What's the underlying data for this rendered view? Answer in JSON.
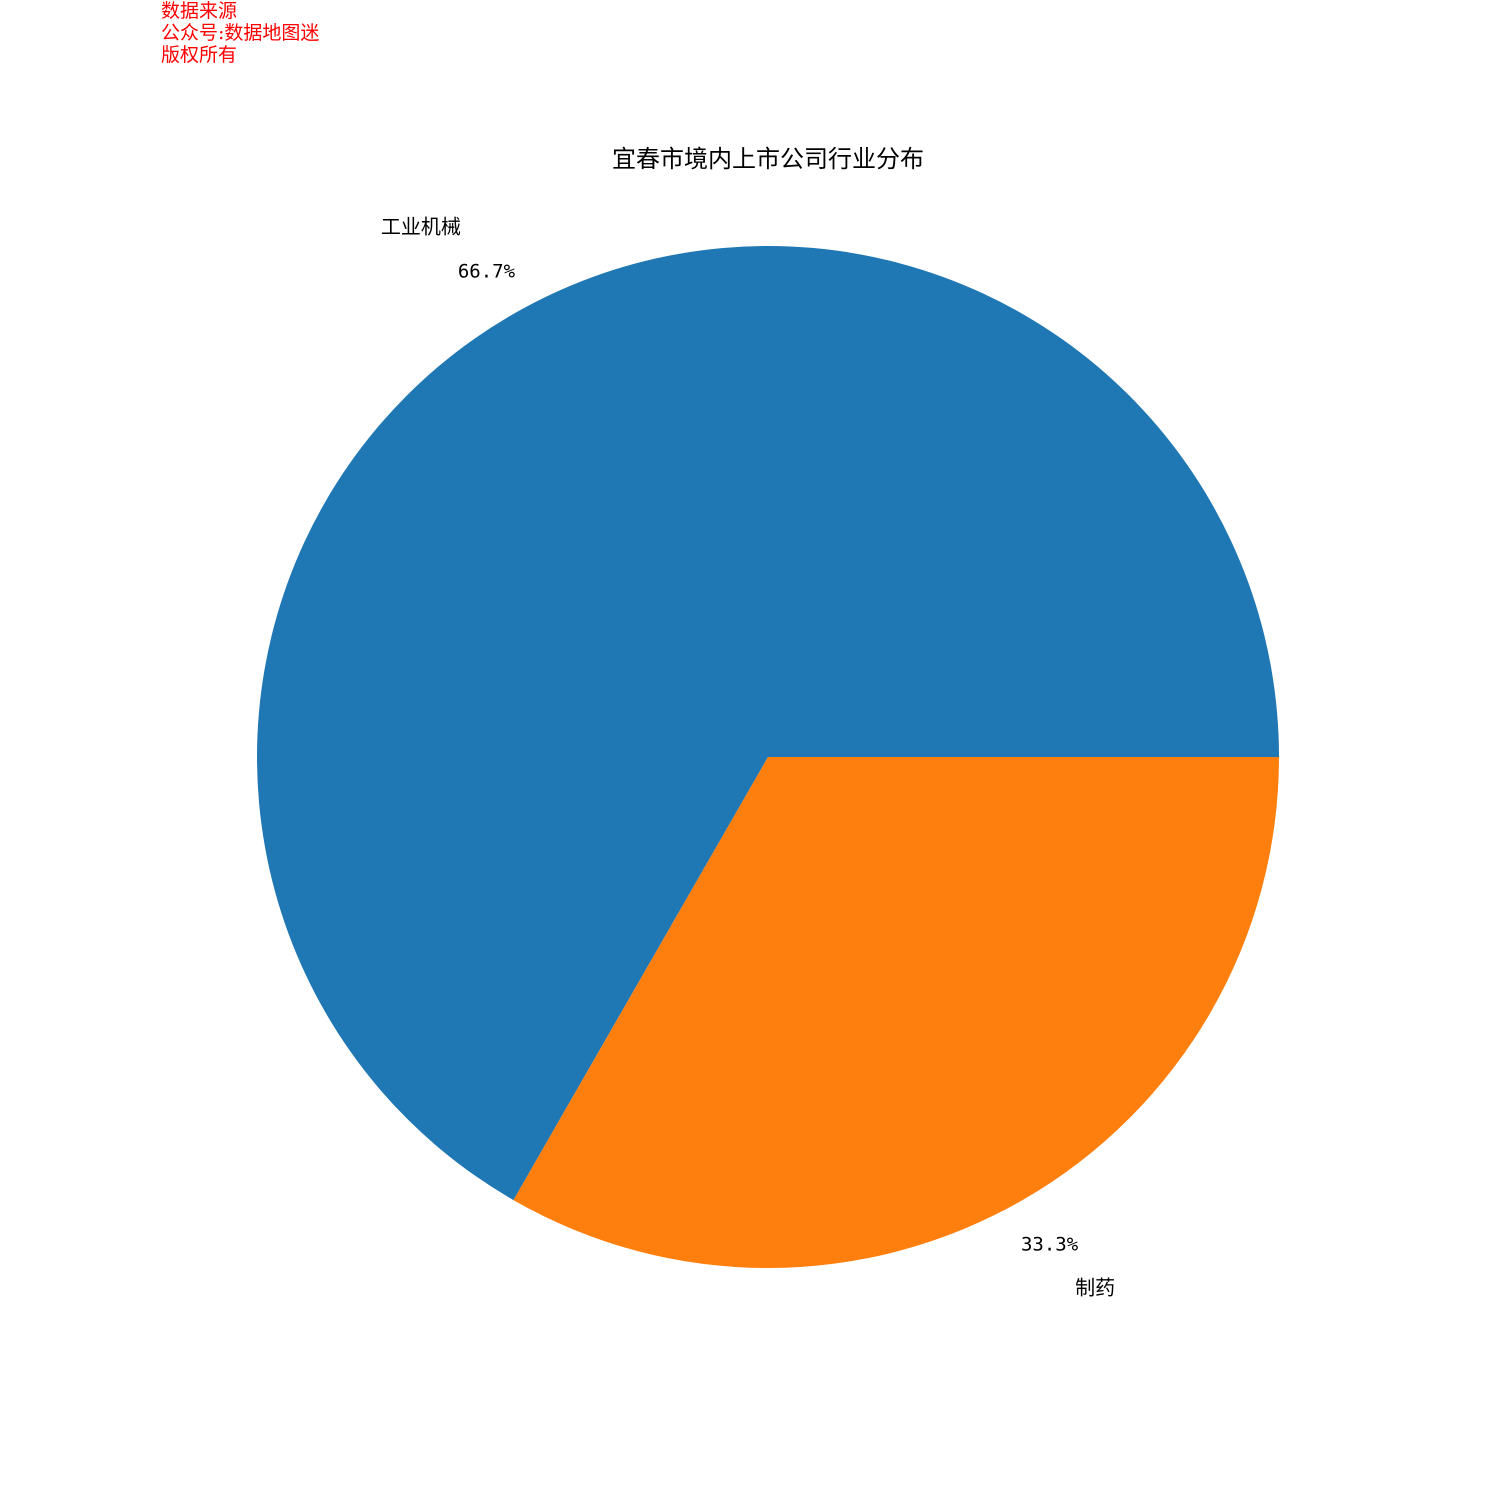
{
  "watermark": {
    "line1": "数据来源",
    "line2": "公众号:数据地图迷",
    "line3": "版权所有",
    "color": "#ff0000"
  },
  "chart_data": {
    "type": "pie",
    "title": "宜春市境内上市公司行业分布",
    "categories": [
      "工业机械",
      "制药"
    ],
    "values": [
      66.7,
      33.3
    ],
    "percent_labels": [
      "66.7%",
      "33.3%"
    ],
    "colors": [
      "#1f77b4",
      "#ff7f0e"
    ],
    "start_angle_deg": 0,
    "direction": "counterclockwise",
    "legend": "none"
  }
}
